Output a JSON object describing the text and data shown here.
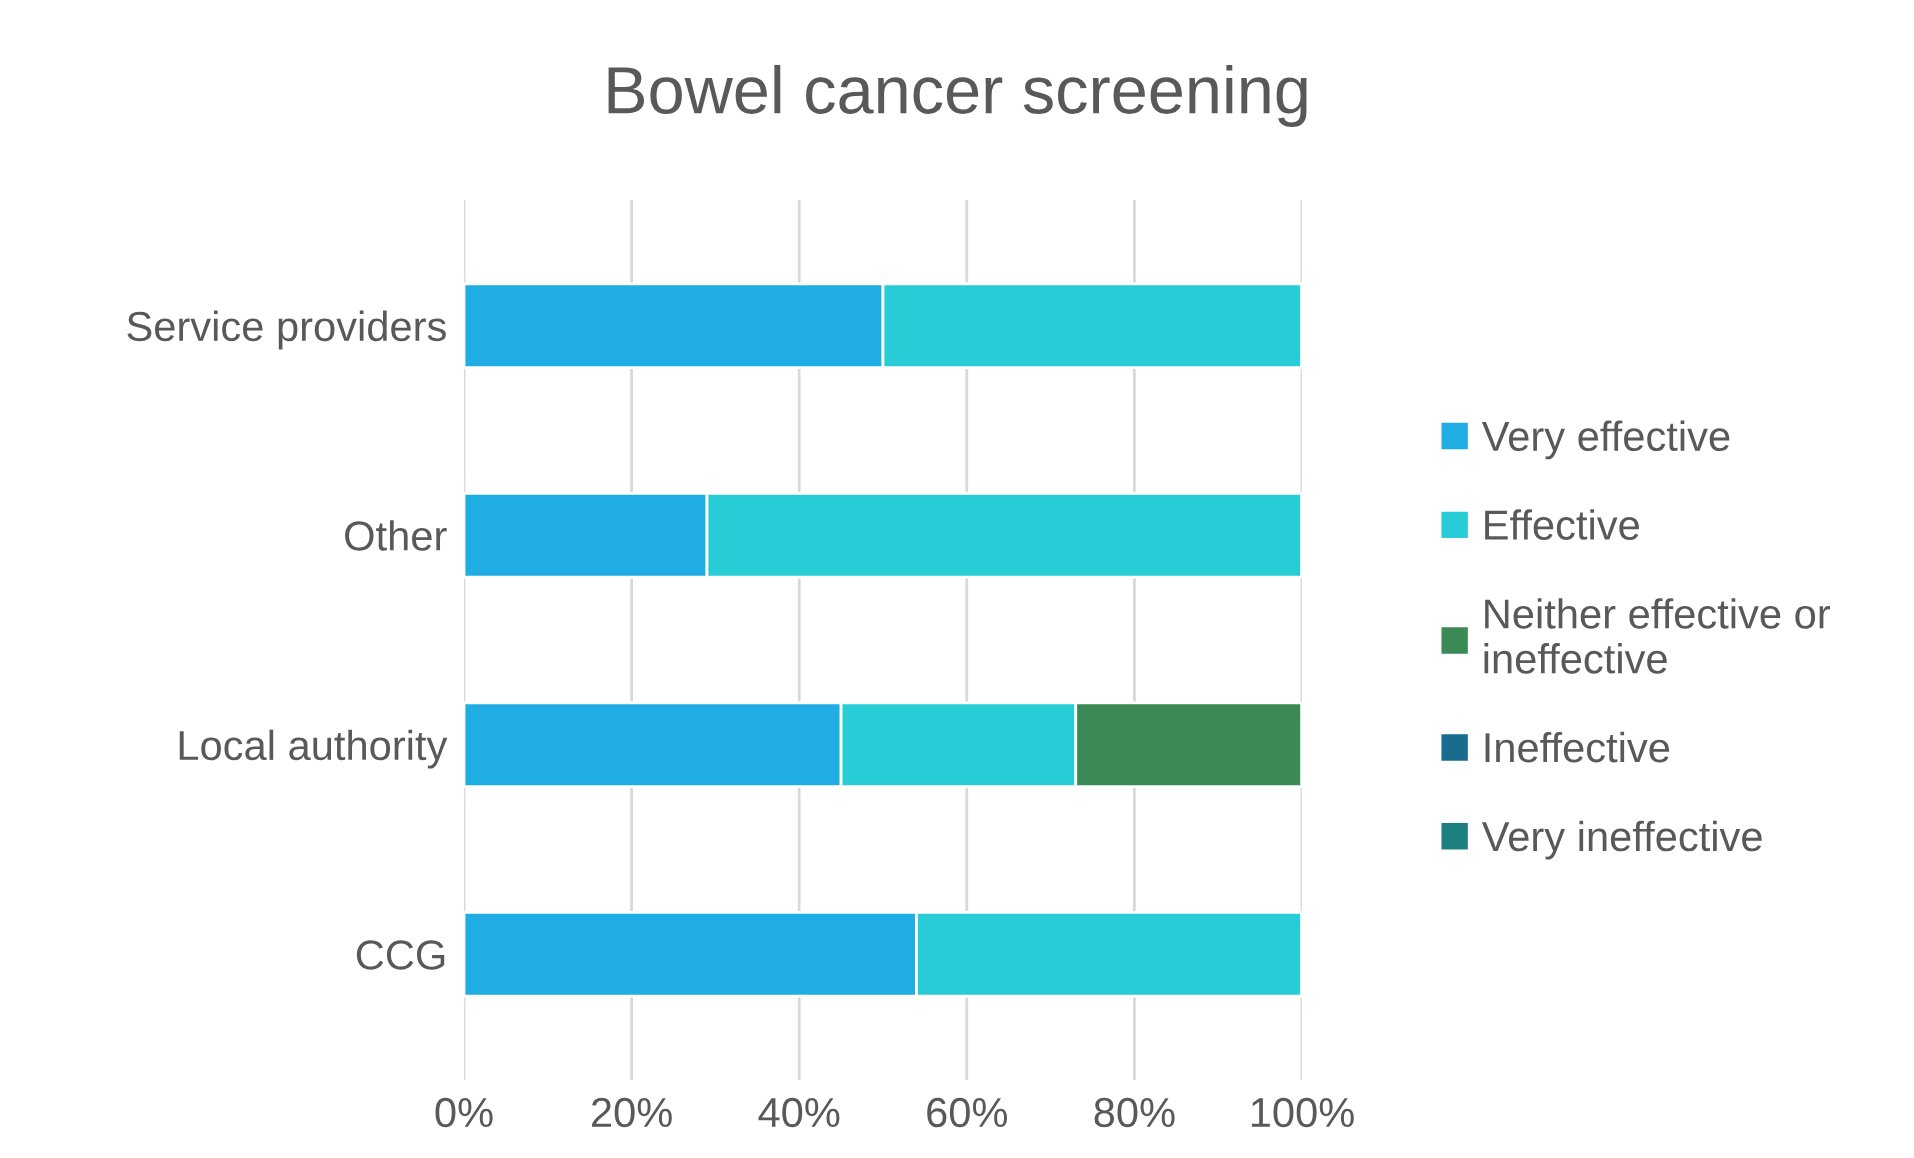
{
  "chart_data": {
    "type": "bar",
    "orientation": "horizontal",
    "stacked": true,
    "title": "Bowel cancer screening",
    "categories": [
      "Service providers",
      "Other",
      "Local authority",
      "CCG"
    ],
    "series": [
      {
        "name": "Very effective",
        "color": "#1fade4",
        "values": [
          50,
          29,
          45,
          54
        ]
      },
      {
        "name": "Effective",
        "color": "#28ccd6",
        "values": [
          50,
          71,
          28,
          46
        ]
      },
      {
        "name": "Neither effective or ineffective",
        "color": "#3b8a55",
        "values": [
          0,
          0,
          27,
          0
        ]
      },
      {
        "name": "Ineffective",
        "color": "#1a6c8f",
        "values": [
          0,
          0,
          0,
          0
        ]
      },
      {
        "name": "Very ineffective",
        "color": "#1e7f80",
        "values": [
          0,
          0,
          0,
          0
        ]
      }
    ],
    "xlim": [
      0,
      100
    ],
    "xticks": [
      {
        "value": 0,
        "label": "0%"
      },
      {
        "value": 20,
        "label": "20%"
      },
      {
        "value": 40,
        "label": "40%"
      },
      {
        "value": 60,
        "label": "60%"
      },
      {
        "value": 80,
        "label": "80%"
      },
      {
        "value": 100,
        "label": "100%"
      }
    ],
    "grid": "x",
    "legend": "right"
  }
}
